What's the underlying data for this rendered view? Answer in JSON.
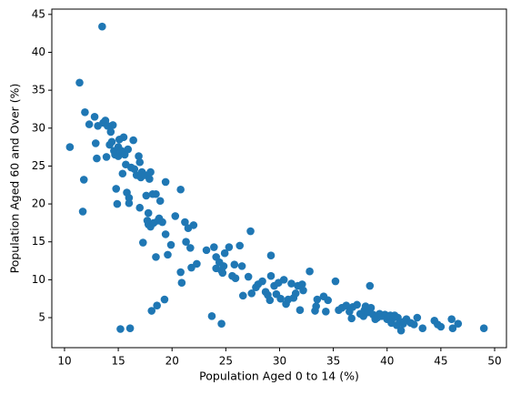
{
  "chart_data": {
    "type": "scatter",
    "xlabel": "Population Aged 0 to 14 (%)",
    "ylabel": "Population Aged 60 and Over (%)",
    "color": "#1f77b4",
    "xlim": [
      8.82,
      51.1
    ],
    "ylim": [
      1.04,
      45.7
    ],
    "xticks": [
      10,
      15,
      20,
      25,
      30,
      35,
      40,
      45,
      50
    ],
    "yticks": [
      5,
      10,
      15,
      20,
      25,
      30,
      35,
      40,
      45
    ],
    "grid": false,
    "x": [
      10.5,
      11.4,
      11.7,
      11.8,
      11.9,
      12.3,
      12.8,
      12.9,
      13,
      13.1,
      13.5,
      13.6,
      13.8,
      13.9,
      14,
      14.2,
      14.3,
      14.4,
      14.5,
      14.6,
      14.7,
      14.8,
      14.9,
      15,
      15,
      15.1,
      15.2,
      15.3,
      15.4,
      15.5,
      15.6,
      15.7,
      15.8,
      15.9,
      16,
      16,
      16.1,
      16.2,
      16.4,
      16.5,
      16.7,
      16.9,
      17,
      17,
      17.1,
      17.2,
      17.3,
      17.5,
      17.6,
      17.7,
      17.8,
      17.8,
      17.9,
      18,
      18,
      18.1,
      18.2,
      18.3,
      18.5,
      18.5,
      18.6,
      18.7,
      18.8,
      18.9,
      19.1,
      19.3,
      19.4,
      19.4,
      19.6,
      19.9,
      20.3,
      20.8,
      20.8,
      20.9,
      21.2,
      21.3,
      21.5,
      21.7,
      21.8,
      22,
      22.3,
      23.2,
      23.7,
      23.9,
      24.1,
      24.1,
      24.4,
      24.6,
      24.6,
      24.7,
      24.8,
      24.9,
      25.3,
      25.6,
      25.8,
      25.9,
      26.3,
      26.5,
      26.6,
      27.1,
      27.3,
      27.4,
      27.8,
      28,
      28.4,
      28.7,
      28.9,
      29.1,
      29.2,
      29.2,
      29.5,
      29.7,
      29.9,
      30.1,
      30.4,
      30.6,
      30.8,
      31.1,
      31.3,
      31.5,
      31.7,
      31.9,
      32.1,
      32.2,
      32.8,
      33.3,
      33.4,
      33.5,
      34.1,
      34.3,
      34.5,
      35.2,
      35.5,
      35.8,
      36.2,
      36.5,
      36.7,
      36.8,
      37.2,
      37.5,
      37.8,
      37.9,
      38,
      38.2,
      38.4,
      38.5,
      38.7,
      38.9,
      39.1,
      39.3,
      39.5,
      39.8,
      40,
      40.2,
      40.3,
      40.4,
      40.6,
      40.7,
      40.9,
      41,
      41.2,
      41.3,
      41.5,
      41.6,
      41.8,
      42.2,
      42.5,
      42.8,
      43.3,
      44.4,
      44.7,
      45,
      46,
      46.1,
      46.6,
      49
    ],
    "values": [
      27.5,
      36,
      19,
      23.2,
      32.1,
      30.5,
      31.5,
      28,
      26,
      30.3,
      43.4,
      30.7,
      31,
      26.2,
      30.3,
      27.8,
      29.5,
      28.2,
      30.4,
      27,
      26.5,
      22,
      20,
      27.5,
      26.3,
      28.5,
      3.5,
      27,
      24,
      28.8,
      26.5,
      25.2,
      21.5,
      27.2,
      20.8,
      20.1,
      3.6,
      24.8,
      28.4,
      24.6,
      23.8,
      26.3,
      25.5,
      19.5,
      23.5,
      24.2,
      14.9,
      23.8,
      21.1,
      17.8,
      18.8,
      17.3,
      23.3,
      24.2,
      17,
      5.9,
      21.3,
      17.5,
      21.3,
      13,
      6.6,
      17.8,
      18.1,
      20.4,
      17.6,
      7.4,
      22.9,
      16,
      13.3,
      14.6,
      18.4,
      21.9,
      11,
      9.6,
      17.6,
      15,
      16.8,
      14.2,
      11.6,
      17.2,
      12.1,
      13.9,
      5.2,
      14.3,
      11.5,
      13,
      12.3,
      11.2,
      4.2,
      10.9,
      11.8,
      13.5,
      14.3,
      10.5,
      12,
      10.2,
      14.5,
      11.8,
      7.9,
      10.4,
      16.4,
      8.2,
      9,
      9.4,
      9.8,
      8.4,
      8,
      7.3,
      10.5,
      13.2,
      9.2,
      8.1,
      9.6,
      7.5,
      10,
      6.8,
      7.4,
      9.5,
      7.6,
      8.2,
      9.2,
      6,
      9.4,
      8.6,
      11.1,
      5.9,
      6.5,
      7.4,
      7.8,
      5.8,
      7.3,
      9.8,
      6,
      6.3,
      6.6,
      5.8,
      4.9,
      6.4,
      6.7,
      5.5,
      5.2,
      6,
      6.5,
      5.7,
      9.2,
      6.3,
      5.4,
      4.8,
      5,
      5.5,
      5.2,
      5.4,
      4.8,
      5.2,
      5.3,
      4.3,
      5,
      5.3,
      4,
      5,
      4.4,
      3.3,
      4.2,
      4.5,
      4.8,
      4.3,
      4.1,
      5,
      3.6,
      4.6,
      4.1,
      3.8,
      4.8,
      3.6,
      4.2,
      3.6
    ]
  }
}
